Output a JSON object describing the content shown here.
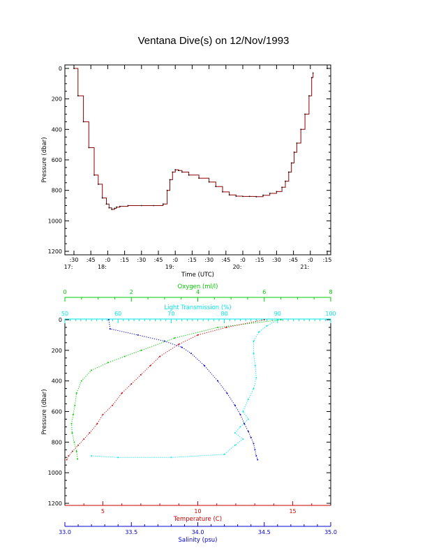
{
  "title": "Ventana Dive(s) on 12/Nov/1993",
  "colors": {
    "axis": "#000000",
    "pressure_trace": "#8b0000",
    "oxygen": "#00cc00",
    "transmission": "#00e5e5",
    "temperature": "#cc0000",
    "salinity": "#0000cc"
  },
  "chart_data": [
    {
      "type": "line",
      "name": "time-series",
      "xlabel": "Time (UTC)",
      "ylabel": "Pressure (dbar)",
      "ylim": [
        1200,
        0
      ],
      "y_ticks": [
        "0",
        "200",
        "400",
        "600",
        "800",
        "1000",
        "1200"
      ],
      "x_ticks": [
        {
          "t": 17.5,
          "minute": ":30",
          "hour": "17:"
        },
        {
          "t": 17.75,
          "minute": ":45",
          "hour": ""
        },
        {
          "t": 18.0,
          "minute": ":0",
          "hour": "18:"
        },
        {
          "t": 18.25,
          "minute": ":15",
          "hour": ""
        },
        {
          "t": 18.5,
          "minute": ":30",
          "hour": ""
        },
        {
          "t": 18.75,
          "minute": ":45",
          "hour": ""
        },
        {
          "t": 19.0,
          "minute": ":0",
          "hour": "19:"
        },
        {
          "t": 19.25,
          "minute": ":15",
          "hour": ""
        },
        {
          "t": 19.5,
          "minute": ":30",
          "hour": ""
        },
        {
          "t": 19.75,
          "minute": ":45",
          "hour": ""
        },
        {
          "t": 20.0,
          "minute": ":0",
          "hour": "20:"
        },
        {
          "t": 20.25,
          "minute": ":15",
          "hour": ""
        },
        {
          "t": 20.5,
          "minute": ":30",
          "hour": ""
        },
        {
          "t": 20.75,
          "minute": ":45",
          "hour": ""
        },
        {
          "t": 21.0,
          "minute": ":0",
          "hour": "21:"
        },
        {
          "t": 21.25,
          "minute": ":15",
          "hour": ""
        }
      ],
      "xlim": [
        17.33,
        21.35
      ],
      "series": [
        {
          "x": [
            17.5,
            17.56,
            17.64,
            17.72,
            17.8,
            17.86,
            17.92,
            17.98,
            18.02,
            18.06,
            18.1,
            18.13,
            18.18,
            18.3,
            18.5,
            18.68,
            18.82,
            18.88,
            18.92,
            18.96,
            19.0,
            19.05,
            19.1,
            19.2,
            19.35,
            19.5,
            19.6,
            19.7,
            19.8,
            19.9,
            20.0,
            20.1,
            20.2,
            20.3,
            20.4,
            20.5,
            20.58,
            20.63,
            20.68,
            20.72,
            20.76,
            20.8,
            20.86,
            20.92,
            20.98,
            21.02,
            21.04
          ],
          "y": [
            0,
            180,
            350,
            520,
            700,
            760,
            850,
            890,
            915,
            925,
            918,
            910,
            905,
            900,
            900,
            900,
            890,
            800,
            730,
            680,
            665,
            670,
            680,
            700,
            720,
            745,
            775,
            810,
            830,
            838,
            840,
            840,
            842,
            832,
            820,
            808,
            780,
            740,
            680,
            620,
            550,
            490,
            400,
            300,
            180,
            60,
            30
          ]
        }
      ]
    },
    {
      "type": "line",
      "name": "profiles",
      "ylabel": "Pressure (dbar)",
      "ylim": [
        1200,
        0
      ],
      "y_ticks": [
        "0",
        "200",
        "400",
        "600",
        "800",
        "1000",
        "1200"
      ],
      "axes": {
        "oxygen": {
          "label": "Oxygen (ml/l)",
          "lim": [
            0,
            8
          ],
          "ticks": [
            "0",
            "2",
            "4",
            "6",
            "8"
          ]
        },
        "transmission": {
          "label": "Light Transmission (%)",
          "lim": [
            50,
            100
          ],
          "ticks": [
            "50",
            "60",
            "70",
            "80",
            "90",
            "100"
          ]
        },
        "temperature": {
          "label": "Temperature (C)",
          "lim": [
            3,
            17
          ],
          "ticks": [
            "5",
            "10",
            "15"
          ]
        },
        "salinity": {
          "label": "Salinity (psu)",
          "lim": [
            33.0,
            35.0
          ],
          "ticks": [
            "33.0",
            "33.5",
            "34.0",
            "34.5",
            "35.0"
          ]
        }
      },
      "series": [
        {
          "variable": "oxygen",
          "x": [
            6.5,
            4.6,
            3.3,
            2.3,
            1.8,
            1.3,
            0.8,
            0.5,
            0.35,
            0.3,
            0.25,
            0.2,
            0.22,
            0.28,
            0.35,
            0.38
          ],
          "y": [
            0,
            50,
            120,
            200,
            240,
            280,
            330,
            400,
            480,
            560,
            620,
            680,
            740,
            800,
            860,
            910
          ]
        },
        {
          "variable": "transmission",
          "x": [
            90,
            88,
            86.5,
            85.5,
            85.5,
            85.8,
            86,
            85.5,
            84.5,
            83.5,
            84.5,
            83,
            82,
            83.5,
            82,
            80,
            70,
            60,
            55
          ],
          "y": [
            0,
            40,
            80,
            140,
            220,
            300,
            380,
            450,
            520,
            600,
            650,
            700,
            740,
            780,
            820,
            880,
            900,
            900,
            890
          ]
        },
        {
          "variable": "temperature",
          "x": [
            13.5,
            11.5,
            10,
            9,
            8,
            7.5,
            7,
            6.5,
            6,
            5.5,
            5,
            4.7,
            4.3,
            4.0,
            3.7,
            3.4,
            3.2,
            3.1
          ],
          "y": [
            0,
            50,
            100,
            160,
            240,
            300,
            360,
            420,
            480,
            560,
            620,
            680,
            740,
            780,
            820,
            860,
            890,
            915
          ]
        },
        {
          "variable": "salinity",
          "x": [
            33.33,
            33.34,
            33.55,
            33.75,
            33.88,
            33.95,
            34.05,
            34.15,
            34.22,
            34.28,
            34.32,
            34.35,
            34.38,
            34.4,
            34.42,
            34.43,
            34.44,
            34.45
          ],
          "y": [
            0,
            60,
            100,
            140,
            180,
            220,
            300,
            400,
            480,
            560,
            620,
            680,
            730,
            770,
            810,
            850,
            890,
            915
          ]
        }
      ]
    }
  ]
}
